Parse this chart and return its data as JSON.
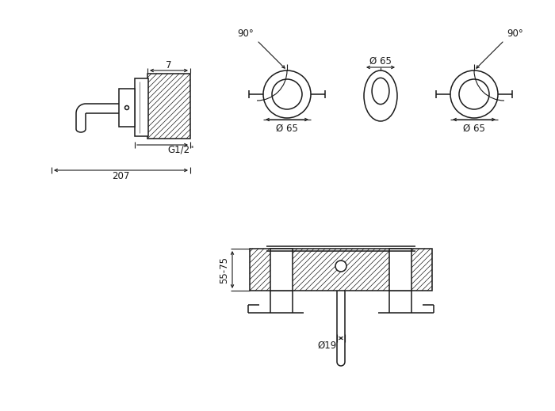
{
  "bg_color": "#ffffff",
  "line_color": "#1a1a1a",
  "fig_width": 7.0,
  "fig_height": 5.19,
  "dpi": 100,
  "lw_main": 1.1,
  "lw_thin": 0.5,
  "lw_dim": 0.8,
  "annotations": {
    "dim_7": "7",
    "dim_G12": "G1/2\"",
    "dim_207": "207",
    "dim_90_left": "90°",
    "dim_90_right": "90°",
    "dim_65_top": "Ø 65",
    "dim_65_bl": "Ø 65",
    "dim_65_br": "Ø 65",
    "dim_55_75": "55-75",
    "dim_19": "Ø19"
  }
}
